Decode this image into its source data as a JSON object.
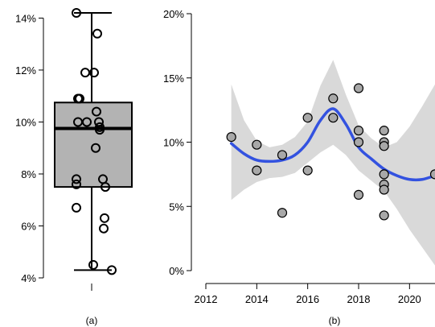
{
  "chart_data": [
    {
      "type": "box",
      "panel_label": "(a)",
      "title": "",
      "xlabel": "",
      "ylabel": "",
      "ylim": [
        4,
        14.2
      ],
      "yticks": [
        4,
        6,
        8,
        10,
        12,
        14
      ],
      "ytick_labels": [
        "4%",
        "6%",
        "8%",
        "10%",
        "12%",
        "14%"
      ],
      "box": {
        "min": 4.3,
        "q1": 7.5,
        "median": 9.75,
        "q3": 10.75,
        "max": 14.2
      },
      "points": [
        14.2,
        13.4,
        11.9,
        11.9,
        10.9,
        10.9,
        10.4,
        10.0,
        10.0,
        10.0,
        9.8,
        9.7,
        9.0,
        7.8,
        7.8,
        7.6,
        7.5,
        6.7,
        6.3,
        5.9,
        4.5,
        4.3
      ],
      "box_color": "#b3b3b3"
    },
    {
      "type": "scatter",
      "panel_label": "(b)",
      "title": "",
      "xlabel": "",
      "ylabel": "",
      "xlim": [
        2012,
        2021
      ],
      "ylim": [
        0,
        20
      ],
      "xticks": [
        2012,
        2014,
        2016,
        2018,
        2020
      ],
      "yticks": [
        0,
        5,
        10,
        15,
        20
      ],
      "ytick_labels": [
        "0%",
        "5%",
        "10%",
        "15%",
        "20%"
      ],
      "points": [
        {
          "x": 2013,
          "y": 10.4
        },
        {
          "x": 2014,
          "y": 9.8
        },
        {
          "x": 2014,
          "y": 7.8
        },
        {
          "x": 2015,
          "y": 9.0
        },
        {
          "x": 2015,
          "y": 4.5
        },
        {
          "x": 2016,
          "y": 11.9
        },
        {
          "x": 2016,
          "y": 7.8
        },
        {
          "x": 2017,
          "y": 13.4
        },
        {
          "x": 2017,
          "y": 11.9
        },
        {
          "x": 2018,
          "y": 14.2
        },
        {
          "x": 2018,
          "y": 10.9
        },
        {
          "x": 2018,
          "y": 10.0
        },
        {
          "x": 2018,
          "y": 5.9
        },
        {
          "x": 2019,
          "y": 10.9
        },
        {
          "x": 2019,
          "y": 10.0
        },
        {
          "x": 2019,
          "y": 9.7
        },
        {
          "x": 2019,
          "y": 7.5
        },
        {
          "x": 2019,
          "y": 6.7
        },
        {
          "x": 2019,
          "y": 6.3
        },
        {
          "x": 2019,
          "y": 4.3
        },
        {
          "x": 2021,
          "y": 7.5
        }
      ],
      "trend": [
        {
          "x": 2013,
          "y": 9.9
        },
        {
          "x": 2013.5,
          "y": 9.1
        },
        {
          "x": 2014,
          "y": 8.6
        },
        {
          "x": 2014.5,
          "y": 8.5
        },
        {
          "x": 2015,
          "y": 8.6
        },
        {
          "x": 2015.5,
          "y": 9.0
        },
        {
          "x": 2016,
          "y": 10.0
        },
        {
          "x": 2016.5,
          "y": 11.7
        },
        {
          "x": 2017,
          "y": 12.6
        },
        {
          "x": 2017.5,
          "y": 11.4
        },
        {
          "x": 2018,
          "y": 9.6
        },
        {
          "x": 2018.5,
          "y": 8.7
        },
        {
          "x": 2019,
          "y": 7.9
        },
        {
          "x": 2019.5,
          "y": 7.4
        },
        {
          "x": 2020,
          "y": 7.1
        },
        {
          "x": 2020.5,
          "y": 7.1
        },
        {
          "x": 2021,
          "y": 7.4
        }
      ],
      "band_upper": [
        {
          "x": 2013,
          "y": 14.5
        },
        {
          "x": 2013.5,
          "y": 11.7
        },
        {
          "x": 2014,
          "y": 10.1
        },
        {
          "x": 2014.5,
          "y": 9.6
        },
        {
          "x": 2015,
          "y": 9.8
        },
        {
          "x": 2015.5,
          "y": 10.4
        },
        {
          "x": 2016,
          "y": 11.6
        },
        {
          "x": 2016.5,
          "y": 14.4
        },
        {
          "x": 2017,
          "y": 16.4
        },
        {
          "x": 2017.5,
          "y": 13.7
        },
        {
          "x": 2018,
          "y": 11.3
        },
        {
          "x": 2018.5,
          "y": 10.3
        },
        {
          "x": 2019,
          "y": 9.6
        },
        {
          "x": 2019.5,
          "y": 10.0
        },
        {
          "x": 2020,
          "y": 11.2
        },
        {
          "x": 2020.5,
          "y": 12.8
        },
        {
          "x": 2021,
          "y": 14.5
        }
      ],
      "band_lower": [
        {
          "x": 2013,
          "y": 5.5
        },
        {
          "x": 2013.5,
          "y": 6.3
        },
        {
          "x": 2014,
          "y": 6.9
        },
        {
          "x": 2014.5,
          "y": 7.2
        },
        {
          "x": 2015,
          "y": 7.3
        },
        {
          "x": 2015.5,
          "y": 7.6
        },
        {
          "x": 2016,
          "y": 8.4
        },
        {
          "x": 2016.5,
          "y": 9.2
        },
        {
          "x": 2017,
          "y": 9.8
        },
        {
          "x": 2017.5,
          "y": 9.0
        },
        {
          "x": 2018,
          "y": 7.8
        },
        {
          "x": 2018.5,
          "y": 7.0
        },
        {
          "x": 2019,
          "y": 6.2
        },
        {
          "x": 2019.5,
          "y": 4.8
        },
        {
          "x": 2020,
          "y": 3.2
        },
        {
          "x": 2020.5,
          "y": 1.8
        },
        {
          "x": 2021,
          "y": 0.4
        }
      ],
      "point_color": "#a8a8a8",
      "line_color": "#3352e0",
      "band_color": "#d9d9d9"
    }
  ]
}
